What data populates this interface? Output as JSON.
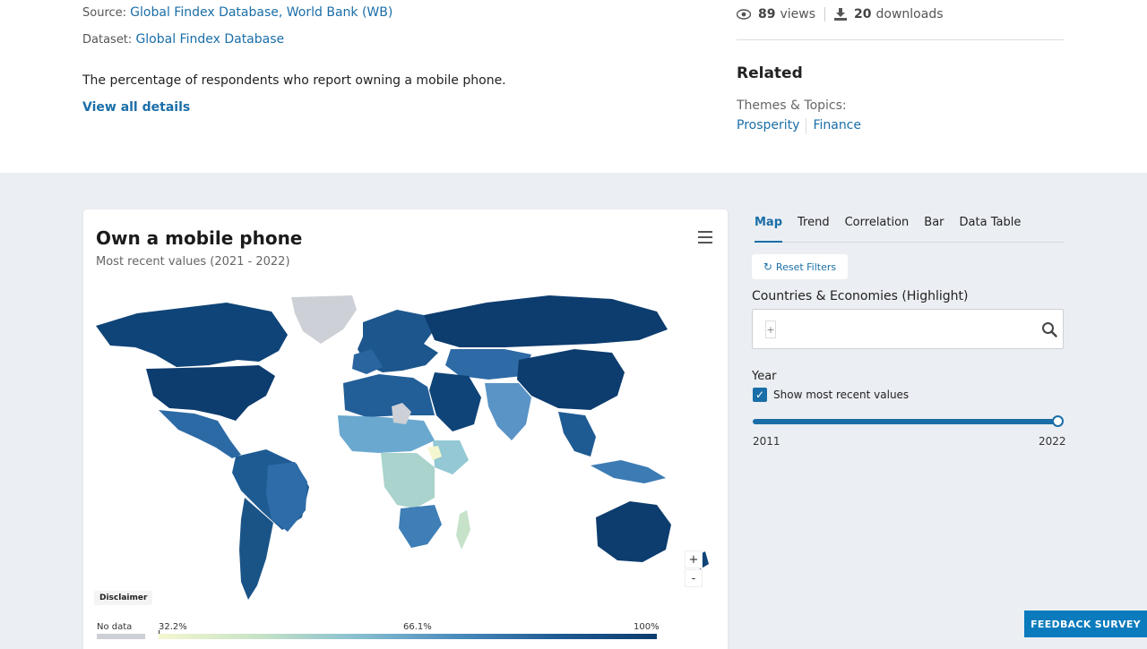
{
  "source": {
    "label": "Source:",
    "value": "Global Findex Database, World Bank (WB)"
  },
  "dataset": {
    "label": "Dataset:",
    "value": "Global Findex Database"
  },
  "description": "The percentage of respondents who report owning a mobile phone.",
  "view_all": "View all details",
  "stats": {
    "views_count": "89",
    "views_label": "views",
    "downloads_count": "20",
    "downloads_label": "downloads"
  },
  "related": {
    "heading": "Related",
    "themes_label": "Themes & Topics:",
    "themes": [
      "Prosperity",
      "Finance"
    ]
  },
  "chart": {
    "title": "Own a mobile phone",
    "subtitle": "Most recent values (2021 - 2022)",
    "zoom_in": "+",
    "zoom_out": "-",
    "disclaimer": "Disclaimer",
    "legend": {
      "no_data": "No data",
      "min": "32.2%",
      "mid": "66.1%",
      "max": "100%"
    }
  },
  "colors": {
    "accent": "#1a6ea8",
    "page_bg": "#ebeef2",
    "feedback_bg": "#0b7bbd",
    "map_high": "#0d3c6e",
    "map_low": "#f4f7cf",
    "no_data": "#cdd0d6"
  },
  "tabs": [
    {
      "label": "Map",
      "active": true
    },
    {
      "label": "Trend"
    },
    {
      "label": "Correlation"
    },
    {
      "label": "Bar"
    },
    {
      "label": "Data Table"
    }
  ],
  "filters": {
    "reset_label": "Reset Filters",
    "countries_label": "Countries & Economies (Highlight)",
    "search_add": "+",
    "year_label": "Year",
    "recent_checkbox_label": "Show most recent values",
    "recent_checked": true,
    "year_min": "2011",
    "year_max": "2022",
    "slider_value_fraction": 1.0
  },
  "feedback": "FEEDBACK SURVEY"
}
